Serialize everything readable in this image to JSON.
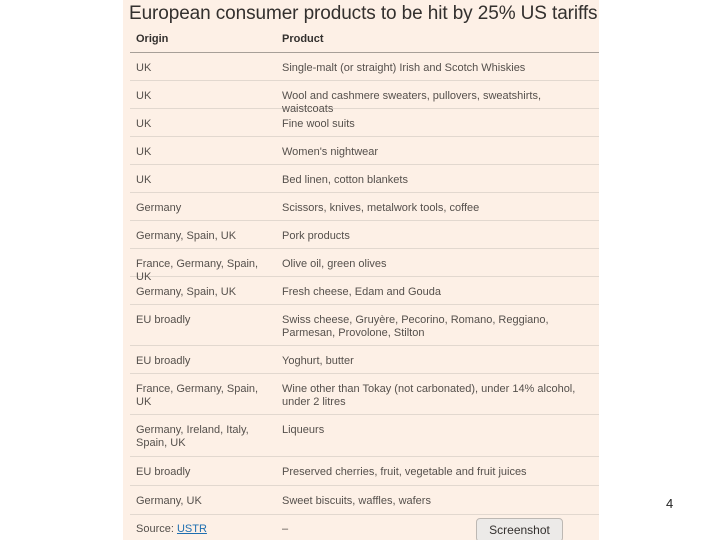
{
  "title": "European consumer products to be hit by 25% US tariffs",
  "columns": {
    "origin": "Origin",
    "product": "Product"
  },
  "rows": [
    {
      "origin": "UK",
      "product": "Single-malt (or straight) Irish and Scotch Whiskies"
    },
    {
      "origin": "UK",
      "product": "Wool and cashmere sweaters, pullovers, sweatshirts, waistcoats"
    },
    {
      "origin": "UK",
      "product": "Fine wool suits"
    },
    {
      "origin": "UK",
      "product": "Women's nightwear"
    },
    {
      "origin": "UK",
      "product": "Bed linen, cotton blankets"
    },
    {
      "origin": "Germany",
      "product": "Scissors, knives, metalwork tools, coffee"
    },
    {
      "origin": "Germany, Spain, UK",
      "product": "Pork products"
    },
    {
      "origin": "France, Germany, Spain, UK",
      "product": "Olive oil, green olives"
    },
    {
      "origin": "Germany, Spain, UK",
      "product": "Fresh cheese, Edam and Gouda"
    },
    {
      "origin": "EU broadly",
      "product": "Swiss cheese, Gruyère, Pecorino, Romano, Reggiano, Parmesan, Provolone, Stilton"
    },
    {
      "origin": "EU broadly",
      "product": "Yoghurt, butter"
    },
    {
      "origin": "France, Germany, Spain, UK",
      "product": "Wine other than Tokay (not carbonated), under 14% alcohol, under 2 litres"
    },
    {
      "origin": "Germany, Ireland, Italy, Spain, UK",
      "product": "Liqueurs"
    },
    {
      "origin": "EU broadly",
      "product": "Preserved cherries, fruit, vegetable and fruit juices"
    },
    {
      "origin": "Germany, UK",
      "product": "Sweet biscuits, waffles, wafers"
    }
  ],
  "source": {
    "label": "Source:",
    "link_text": "USTR"
  },
  "footer_dash": "–",
  "screenshot_button": "Screenshot",
  "page_number": "4",
  "colors": {
    "panel_bg": "#fdf0e6",
    "link": "#1f6fb0"
  }
}
